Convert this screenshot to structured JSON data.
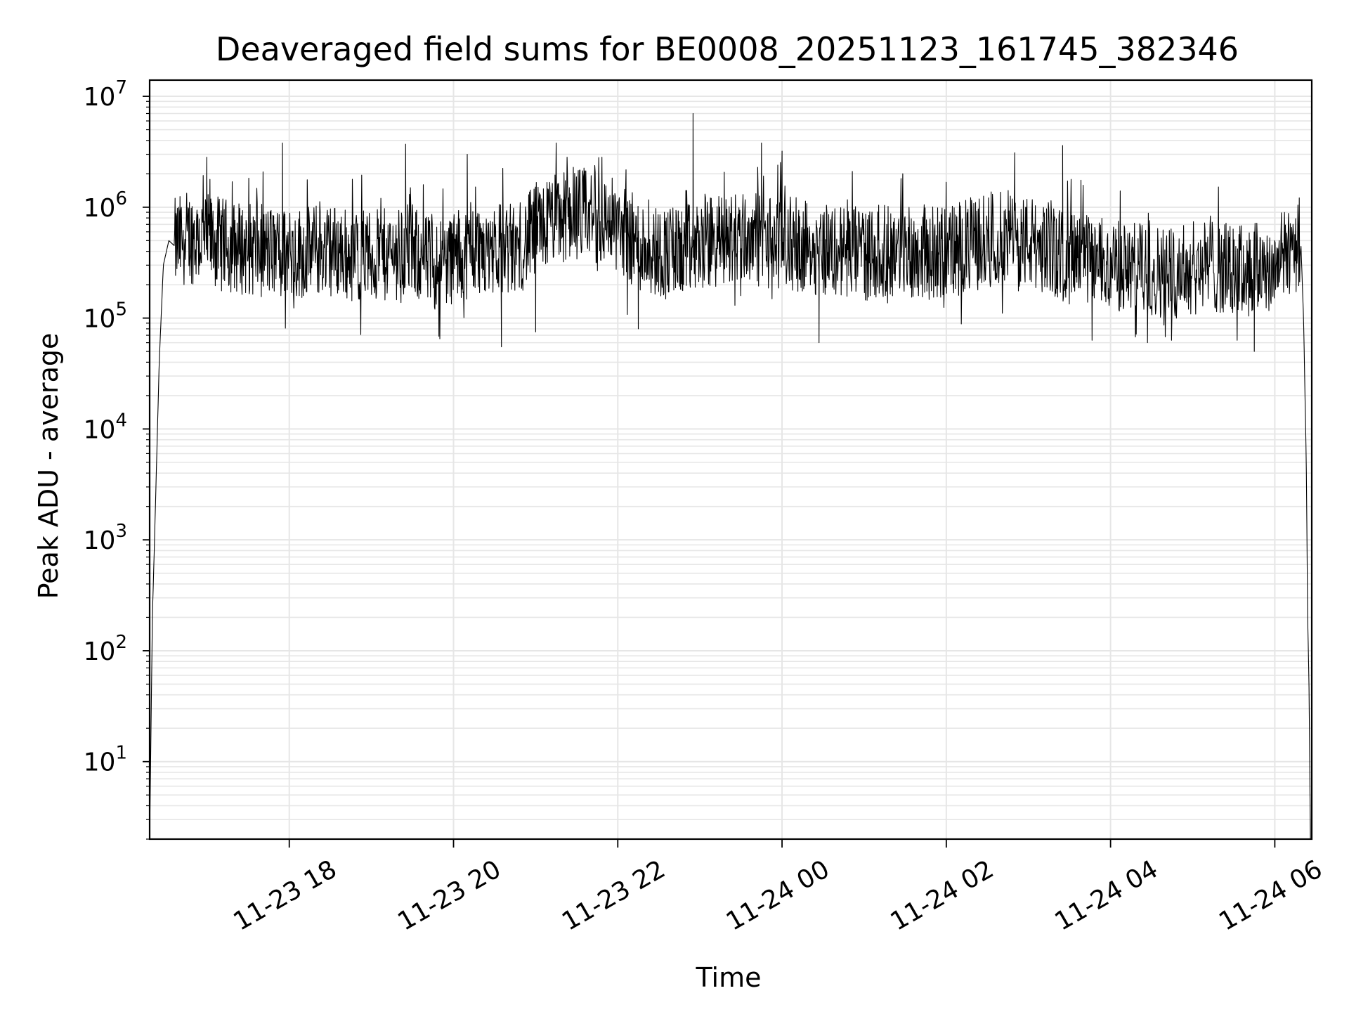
{
  "chart_data": {
    "type": "line",
    "title": "Deaveraged field sums for BE0008_20251123_161745_382346",
    "xlabel": "Time",
    "ylabel": "Peak ADU - average",
    "yscale": "log",
    "ylim": [
      2,
      14000000
    ],
    "xlim": [
      "2025-11-23T16:18",
      "2025-11-24T06:27"
    ],
    "x_ticks": [
      {
        "value": "2025-11-23T18:00",
        "label": "11-23 18"
      },
      {
        "value": "2025-11-23T20:00",
        "label": "11-23 20"
      },
      {
        "value": "2025-11-23T22:00",
        "label": "11-23 22"
      },
      {
        "value": "2025-11-24T00:00",
        "label": "11-24 00"
      },
      {
        "value": "2025-11-24T02:00",
        "label": "11-24 02"
      },
      {
        "value": "2025-11-24T04:00",
        "label": "11-24 04"
      },
      {
        "value": "2025-11-24T06:00",
        "label": "11-24 06"
      }
    ],
    "y_ticks": [
      {
        "value": 10,
        "base": "10",
        "exp": "1"
      },
      {
        "value": 100,
        "base": "10",
        "exp": "2"
      },
      {
        "value": 1000,
        "base": "10",
        "exp": "3"
      },
      {
        "value": 10000,
        "base": "10",
        "exp": "4"
      },
      {
        "value": 100000,
        "base": "10",
        "exp": "5"
      },
      {
        "value": 1000000,
        "base": "10",
        "exp": "6"
      },
      {
        "value": 10000000,
        "base": "10",
        "exp": "7"
      }
    ],
    "grid": true,
    "line_color": "#000000",
    "grid_color": "#e6e6e6",
    "series": [
      {
        "x": [
          "2025-11-23T16:18",
          "2025-11-23T16:20",
          "2025-11-23T16:22",
          "2025-11-23T16:25",
          "2025-11-23T16:28",
          "2025-11-23T16:32",
          "2025-11-23T16:36",
          "2025-11-23T16:45",
          "2025-11-23T17:00",
          "2025-11-23T17:15",
          "2025-11-23T17:30",
          "2025-11-23T17:45",
          "2025-11-23T18:00",
          "2025-11-23T18:15",
          "2025-11-23T18:30",
          "2025-11-23T18:45",
          "2025-11-23T19:00",
          "2025-11-23T19:15",
          "2025-11-23T19:30",
          "2025-11-23T19:45",
          "2025-11-23T20:00",
          "2025-11-23T20:15",
          "2025-11-23T20:30",
          "2025-11-23T20:45",
          "2025-11-23T21:00",
          "2025-11-23T21:15",
          "2025-11-23T21:30",
          "2025-11-23T21:45",
          "2025-11-23T22:00",
          "2025-11-23T22:15",
          "2025-11-23T22:30",
          "2025-11-23T22:45",
          "2025-11-23T23:00",
          "2025-11-23T23:15",
          "2025-11-23T23:30",
          "2025-11-23T23:45",
          "2025-11-24T00:00",
          "2025-11-24T00:15",
          "2025-11-24T00:30",
          "2025-11-24T00:45",
          "2025-11-24T01:00",
          "2025-11-24T01:15",
          "2025-11-24T01:30",
          "2025-11-24T01:45",
          "2025-11-24T02:00",
          "2025-11-24T02:15",
          "2025-11-24T02:30",
          "2025-11-24T02:45",
          "2025-11-24T03:00",
          "2025-11-24T03:15",
          "2025-11-24T03:30",
          "2025-11-24T03:45",
          "2025-11-24T04:00",
          "2025-11-24T04:15",
          "2025-11-24T04:30",
          "2025-11-24T04:45",
          "2025-11-24T05:00",
          "2025-11-24T05:15",
          "2025-11-24T05:30",
          "2025-11-24T05:45",
          "2025-11-24T06:00",
          "2025-11-24T06:10",
          "2025-11-24T06:15",
          "2025-11-24T06:19",
          "2025-11-24T06:21",
          "2025-11-24T06:23",
          "2025-11-24T06:24",
          "2025-11-24T06:25",
          "2025-11-24T06:26"
        ],
        "y": [
          2,
          200,
          1600,
          40000,
          300000,
          500000,
          450000,
          550000,
          500000,
          450000,
          420000,
          400000,
          380000,
          400000,
          420000,
          380000,
          350000,
          380000,
          400000,
          300000,
          350000,
          420000,
          450000,
          400000,
          600000,
          800000,
          900000,
          800000,
          700000,
          450000,
          400000,
          380000,
          450000,
          500000,
          550000,
          500000,
          480000,
          450000,
          420000,
          400000,
          380000,
          400000,
          420000,
          380000,
          400000,
          450000,
          500000,
          550000,
          480000,
          420000,
          350000,
          320000,
          300000,
          280000,
          270000,
          260000,
          280000,
          300000,
          260000,
          280000,
          300000,
          400000,
          550000,
          500000,
          100000,
          5000,
          200,
          50,
          2
        ]
      }
    ],
    "noise_band": {
      "typical_min": 100000,
      "typical_max": 2000000,
      "extreme_peaks": [
        {
          "x": "2025-11-23T22:55",
          "y": 7000000
        },
        {
          "x": "2025-11-23T21:15",
          "y": 3800000
        },
        {
          "x": "2025-11-23T17:55",
          "y": 3800000
        },
        {
          "x": "2025-11-23T23:45",
          "y": 3800000
        },
        {
          "x": "2025-11-23T19:25",
          "y": 3700000
        },
        {
          "x": "2025-11-24T03:25",
          "y": 3600000
        },
        {
          "x": "2025-11-24T02:50",
          "y": 3100000
        },
        {
          "x": "2025-11-24T00:00",
          "y": 3200000
        },
        {
          "x": "2025-11-23T20:10",
          "y": 3000000
        }
      ],
      "extreme_dips": [
        {
          "x": "2025-11-23T20:35",
          "y": 55000
        },
        {
          "x": "2025-11-24T00:27",
          "y": 60000
        },
        {
          "x": "2025-11-24T05:45",
          "y": 50000
        },
        {
          "x": "2025-11-24T04:27",
          "y": 60000
        },
        {
          "x": "2025-11-23T19:50",
          "y": 65000
        },
        {
          "x": "2025-11-23T21:00",
          "y": 75000
        },
        {
          "x": "2025-11-23T22:15",
          "y": 80000
        }
      ]
    }
  }
}
